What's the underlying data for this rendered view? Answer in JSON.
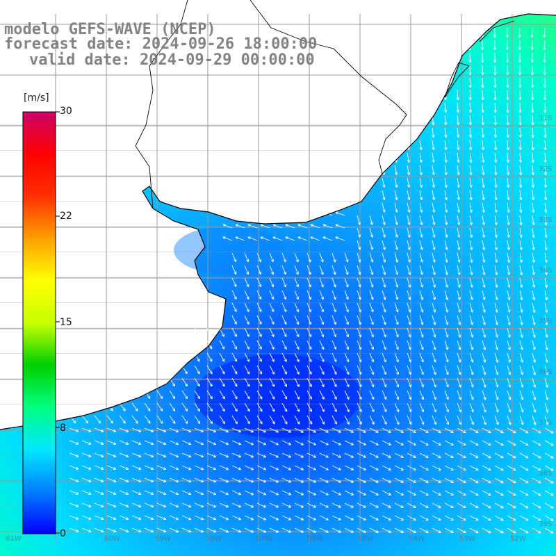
{
  "title": {
    "model": "modelo GEFS-WAVE (NCEP)",
    "forecast": "forecast date: 2024-09-26 18:00:00",
    "valid": "valid date: 2024-09-29 00:00:00"
  },
  "colorbar": {
    "unit": "[m/s]",
    "min": 0,
    "max": 30,
    "ticks": [
      "30",
      "22",
      "15",
      "8",
      "0"
    ],
    "tick_values": [
      30,
      22,
      15,
      8,
      0
    ],
    "colors": [
      "#0000ff",
      "#0080ff",
      "#00e8ff",
      "#00ff80",
      "#00d000",
      "#c8ff00",
      "#ffff00",
      "#ffa000",
      "#ff3000",
      "#ff0000",
      "#cc0066"
    ]
  },
  "map": {
    "latitude_labels": [
      "31S",
      "32S",
      "33S",
      "34S",
      "35S",
      "36S",
      "37S",
      "38S",
      "39S",
      "40S",
      "41S"
    ],
    "longitude_labels": [
      "61W",
      "60W",
      "59W",
      "58W",
      "57W",
      "56W",
      "55W",
      "54W",
      "53W",
      "52W",
      "51W"
    ],
    "ocean_color": "#1a8cff",
    "land_color": "#ffffff",
    "coastline_color": "#000000",
    "grid_color": "#999999",
    "arrow_color": "#ffffff"
  }
}
